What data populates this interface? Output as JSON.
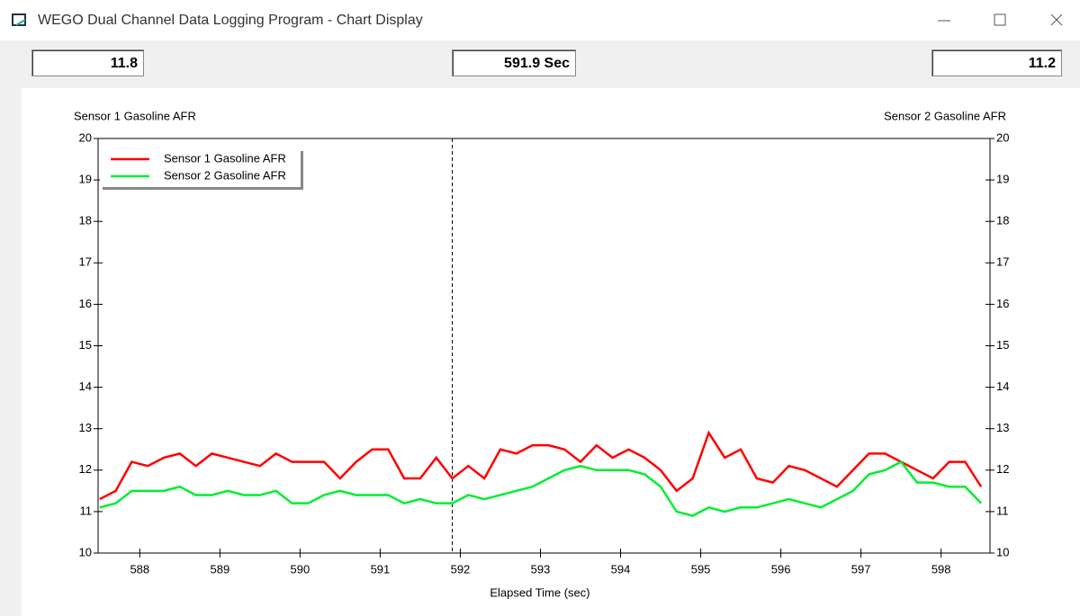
{
  "window": {
    "title": "WEGO Dual Channel Data Logging Program - Chart Display",
    "readout_left": "11.8",
    "readout_center": "591.9 Sec",
    "readout_right": "11.2"
  },
  "chart_data": {
    "type": "line",
    "y_label": "Sensor 1 Gasoline AFR",
    "y2_label": "Sensor 2 Gasoline AFR",
    "x_label": "Elapsed Time (sec)",
    "xlim": [
      587.48,
      598.61
    ],
    "xticks": [
      588,
      589,
      590,
      591,
      592,
      593,
      594,
      595,
      596,
      597,
      598
    ],
    "ylim": [
      10,
      20
    ],
    "yticks": [
      10,
      11,
      12,
      13,
      14,
      15,
      16,
      17,
      18,
      19,
      20
    ],
    "y2lim": [
      10,
      20
    ],
    "y2ticks": [
      10,
      11,
      12,
      13,
      14,
      15,
      16,
      17,
      18,
      19,
      20
    ],
    "cursor": 591.9,
    "legend": "upper left",
    "x": [
      587.5,
      587.7,
      587.9,
      588.1,
      588.3,
      588.5,
      588.7,
      588.9,
      589.1,
      589.3,
      589.5,
      589.7,
      589.9,
      590.1,
      590.3,
      590.5,
      590.7,
      590.9,
      591.1,
      591.3,
      591.5,
      591.7,
      591.9,
      592.1,
      592.3,
      592.5,
      592.7,
      592.9,
      593.1,
      593.3,
      593.5,
      593.7,
      593.9,
      594.1,
      594.3,
      594.5,
      594.7,
      594.9,
      595.1,
      595.3,
      595.5,
      595.7,
      595.9,
      596.1,
      596.3,
      596.5,
      596.7,
      596.9,
      597.1,
      597.3,
      597.5,
      597.7,
      597.9,
      598.1,
      598.3,
      598.5
    ],
    "series": [
      {
        "name": "Sensor 1 Gasoline AFR",
        "color": "#ff0000",
        "values": [
          11.3,
          11.5,
          12.2,
          12.1,
          12.3,
          12.4,
          12.1,
          12.4,
          12.3,
          12.2,
          12.1,
          12.4,
          12.2,
          12.2,
          12.2,
          11.8,
          12.2,
          12.5,
          12.5,
          11.8,
          11.8,
          12.3,
          11.8,
          12.1,
          11.8,
          12.5,
          12.4,
          12.6,
          12.6,
          12.5,
          12.2,
          12.6,
          12.3,
          12.5,
          12.3,
          12.0,
          11.5,
          11.8,
          12.9,
          12.3,
          12.5,
          11.8,
          11.7,
          12.1,
          12.0,
          11.8,
          11.6,
          12.0,
          12.4,
          12.4,
          12.2,
          12.0,
          11.8,
          12.2,
          12.2,
          11.6
        ]
      },
      {
        "name": "Sensor 2 Gasoline AFR",
        "color": "#00ee33",
        "axis": "y2",
        "values": [
          11.1,
          11.2,
          11.5,
          11.5,
          11.5,
          11.6,
          11.4,
          11.4,
          11.5,
          11.4,
          11.4,
          11.5,
          11.2,
          11.2,
          11.4,
          11.5,
          11.4,
          11.4,
          11.4,
          11.2,
          11.3,
          11.2,
          11.2,
          11.4,
          11.3,
          11.4,
          11.5,
          11.6,
          11.8,
          12.0,
          12.1,
          12.0,
          12.0,
          12.0,
          11.9,
          11.6,
          11.0,
          10.9,
          11.1,
          11.0,
          11.1,
          11.1,
          11.2,
          11.3,
          11.2,
          11.1,
          11.3,
          11.5,
          11.9,
          12.0,
          12.2,
          11.7,
          11.7,
          11.6,
          11.6,
          11.2
        ]
      }
    ]
  }
}
